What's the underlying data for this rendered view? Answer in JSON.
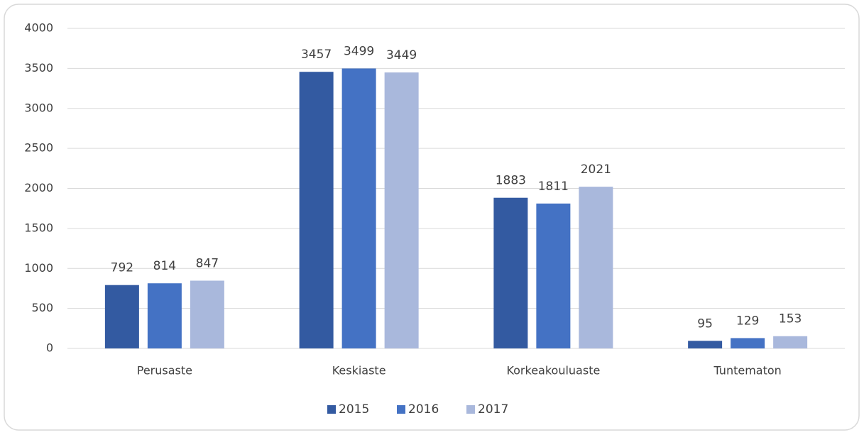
{
  "chart_data": {
    "type": "bar",
    "categories": [
      "Perusaste",
      "Keskiaste",
      "Korkeakouluaste",
      "Tuntematon"
    ],
    "series": [
      {
        "name": "2015",
        "color": "#335aa1",
        "values": [
          792,
          3457,
          1883,
          95
        ]
      },
      {
        "name": "2016",
        "color": "#4472c4",
        "values": [
          814,
          3499,
          1811,
          129
        ]
      },
      {
        "name": "2017",
        "color": "#a9b8dc",
        "values": [
          847,
          3449,
          2021,
          153
        ]
      }
    ],
    "ylim": [
      0,
      4000
    ],
    "yticks": [
      0,
      500,
      1000,
      1500,
      2000,
      2500,
      3000,
      3500,
      4000
    ],
    "grid": true,
    "legend": "bottom",
    "data_labels": true
  }
}
